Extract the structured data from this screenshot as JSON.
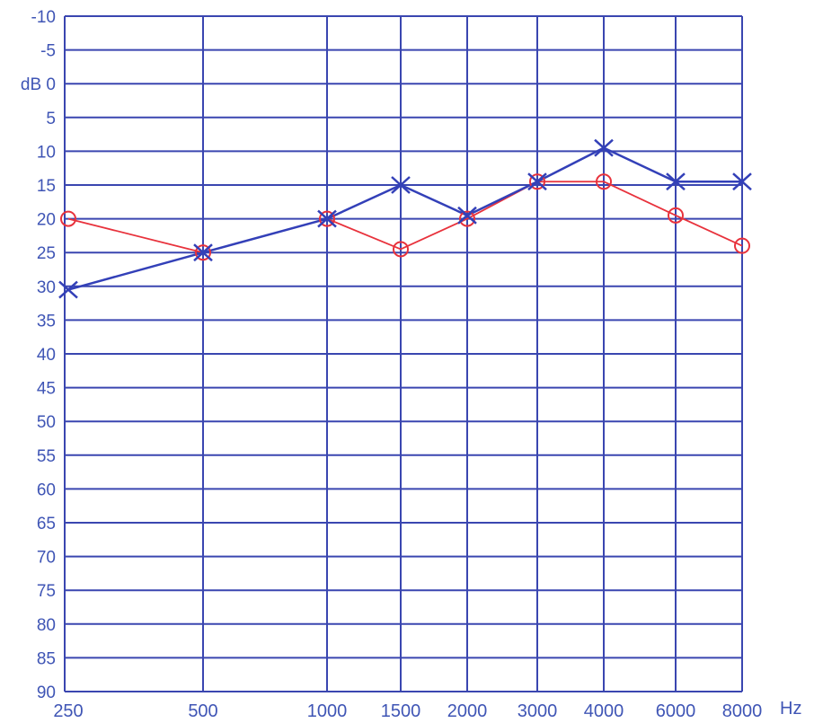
{
  "chart_data": {
    "type": "line",
    "x_categories": [
      "250",
      "500",
      "1000",
      "1500",
      "2000",
      "3000",
      "4000",
      "6000",
      "8000"
    ],
    "x_unit": "Hz",
    "y_unit": "dB",
    "y_ticks": [
      "-10",
      "-5",
      "0",
      "5",
      "10",
      "15",
      "20",
      "25",
      "30",
      "35",
      "40",
      "45",
      "50",
      "55",
      "60",
      "65",
      "70",
      "75",
      "80",
      "85",
      "90"
    ],
    "y_top_label": "dB 0",
    "ylim": [
      -10,
      90
    ],
    "y_inverted": true,
    "grid": true,
    "series": [
      {
        "marker": "circle",
        "color": "#e8323c",
        "values": [
          20,
          25,
          20,
          24.5,
          20,
          14.5,
          14.5,
          19.5,
          24
        ]
      },
      {
        "marker": "x",
        "color": "#3340b8",
        "values": [
          30.5,
          25,
          20,
          15,
          19.5,
          14.5,
          9.5,
          14.5,
          14.5
        ]
      }
    ]
  }
}
